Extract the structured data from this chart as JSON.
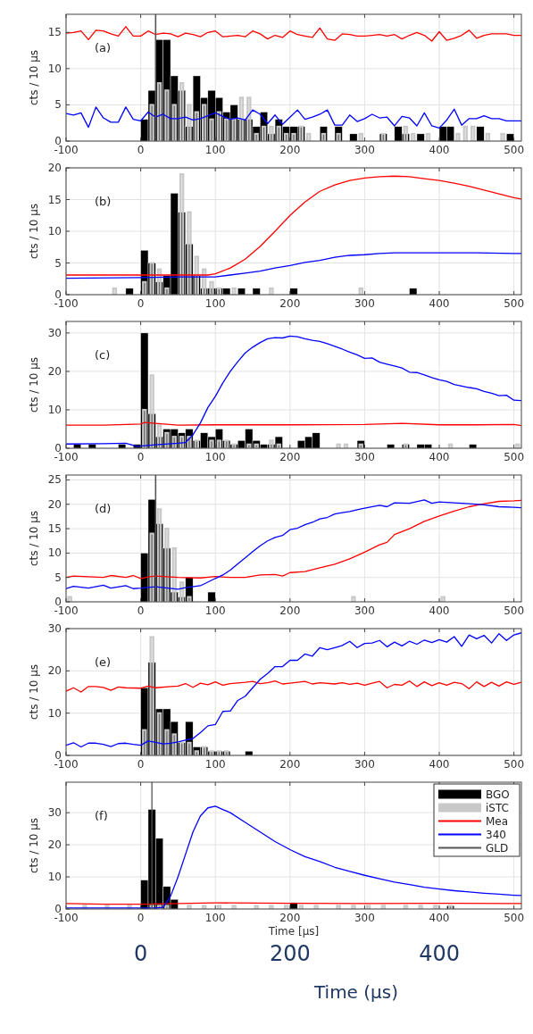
{
  "chart_data": [
    {
      "type": "bar",
      "annotations": [
        "(a)"
      ],
      "ylabel": "cts / 10 μs",
      "xlim": [
        -100,
        510
      ],
      "xticks": [
        -100,
        0,
        100,
        200,
        300,
        400,
        500
      ],
      "ylim": [
        0,
        17.5
      ],
      "yticks": [
        0,
        5,
        10,
        15
      ],
      "grid": true,
      "ref_lines": [
        {
          "axis": "x",
          "value": 20,
          "color": "#555555"
        }
      ],
      "series": [
        {
          "type": "bar",
          "color": "#000000",
          "x": [
            5,
            15,
            25,
            35,
            45,
            55,
            65,
            75,
            85,
            95,
            105,
            115,
            125,
            135,
            145,
            155,
            165,
            175,
            185,
            195,
            205,
            215,
            245,
            265,
            285,
            325,
            345,
            355,
            375,
            405,
            415,
            455,
            495
          ],
          "values": [
            3,
            7,
            14,
            14,
            9,
            7,
            2,
            9,
            6,
            7,
            6,
            4,
            5,
            3,
            3,
            2,
            4,
            1,
            3,
            2,
            2,
            2,
            2,
            2,
            1,
            1,
            2,
            1,
            1,
            2,
            2,
            2,
            1
          ]
        },
        {
          "type": "bar",
          "color": "#c8c8c8",
          "x": [
            15,
            25,
            35,
            45,
            55,
            65,
            75,
            85,
            95,
            105,
            115,
            125,
            135,
            145,
            155,
            165,
            175,
            185,
            195,
            205,
            215,
            225,
            245,
            265,
            295,
            325,
            355,
            365,
            385,
            425,
            435,
            445,
            465,
            485
          ],
          "values": [
            5,
            8,
            7,
            5,
            8,
            5,
            4,
            5,
            3,
            4,
            3,
            3,
            6,
            6,
            1,
            2,
            2,
            2,
            1,
            1,
            2,
            1,
            1,
            1,
            1,
            1,
            2,
            1,
            1,
            1,
            2,
            2,
            1,
            1
          ]
        },
        {
          "type": "line",
          "color": "#ff0000",
          "x": [
            -100,
            -90,
            -80,
            -70,
            -60,
            -50,
            -40,
            -30,
            -20,
            -10,
            0,
            10,
            20,
            30,
            40,
            50,
            60,
            70,
            80,
            90,
            100,
            110,
            120,
            130,
            140,
            150,
            160,
            170,
            180,
            190,
            200,
            210,
            220,
            230,
            240,
            250,
            260,
            270,
            280,
            290,
            300,
            310,
            320,
            330,
            340,
            350,
            360,
            370,
            380,
            390,
            400,
            410,
            420,
            430,
            440,
            450,
            460,
            470,
            480,
            490,
            500,
            510
          ],
          "values": [
            14.9,
            15,
            15.2,
            14,
            15.3,
            15.2,
            14.8,
            14.5,
            15.8,
            14.5,
            14.5,
            15.2,
            14.7,
            14.9,
            14.8,
            14.4,
            14.9,
            14.7,
            14.4,
            15,
            15.2,
            14.4,
            14.5,
            14.6,
            14.4,
            15.2,
            14.8,
            14.1,
            14.6,
            14.3,
            15.2,
            14.7,
            14.5,
            14.3,
            15.6,
            14.1,
            13.9,
            14.8,
            14.7,
            14.5,
            14.5,
            14.6,
            14.7,
            14.5,
            14.7,
            14.1,
            14.6,
            15,
            14.6,
            13.8,
            15.1,
            13.9,
            14.2,
            14.6,
            15.3,
            14.2,
            14.6,
            14.8,
            14.8,
            14.8,
            14.6,
            14.6
          ]
        },
        {
          "type": "line",
          "color": "#0000ff",
          "x": [
            -100,
            -90,
            -80,
            -70,
            -60,
            -50,
            -40,
            -30,
            -20,
            -10,
            0,
            10,
            20,
            30,
            40,
            50,
            60,
            70,
            80,
            90,
            100,
            110,
            120,
            130,
            140,
            150,
            160,
            170,
            180,
            190,
            200,
            210,
            220,
            230,
            240,
            250,
            260,
            270,
            280,
            290,
            300,
            310,
            320,
            330,
            340,
            350,
            360,
            370,
            380,
            390,
            400,
            410,
            420,
            430,
            440,
            450,
            460,
            470,
            480,
            490,
            500,
            510
          ],
          "values": [
            3.8,
            3.6,
            3.9,
            1.9,
            4.7,
            3.2,
            2.6,
            2.6,
            4.7,
            3,
            2.8,
            4,
            3.3,
            3.7,
            3.1,
            3.1,
            3.3,
            2.9,
            3.1,
            3.5,
            3.9,
            3.4,
            3,
            3.2,
            2.9,
            4.3,
            3.7,
            2.4,
            3.6,
            2.3,
            3.3,
            4.3,
            3,
            3.3,
            3.7,
            4.3,
            2.2,
            2.2,
            3.6,
            2.7,
            3.1,
            3.7,
            3.2,
            3.3,
            2.1,
            3.4,
            3.2,
            2.1,
            3.9,
            2.1,
            1.8,
            2.9,
            4.4,
            2.2,
            3.1,
            3.1,
            3.5,
            3.1,
            3.1,
            2.8,
            2.8,
            2.8
          ]
        }
      ]
    },
    {
      "type": "bar",
      "annotations": [
        "(b)"
      ],
      "ylabel": "cts / 10 μs",
      "xlim": [
        -100,
        510
      ],
      "xticks": [
        -100,
        0,
        100,
        200,
        300,
        400,
        500
      ],
      "ylim": [
        0,
        20
      ],
      "yticks": [
        0,
        5,
        10,
        15,
        20
      ],
      "grid": true,
      "series": [
        {
          "type": "bar",
          "color": "#000000",
          "x": [
            -15,
            5,
            15,
            25,
            35,
            45,
            55,
            65,
            75,
            85,
            95,
            105,
            115,
            135,
            155,
            205,
            365
          ],
          "values": [
            1,
            7,
            5,
            2,
            3,
            16,
            13,
            8,
            3,
            1,
            1,
            1,
            1,
            1,
            1,
            1,
            1
          ]
        },
        {
          "type": "bar",
          "color": "#c8c8c8",
          "x": [
            -35,
            5,
            15,
            25,
            35,
            55,
            65,
            75,
            85,
            95,
            105,
            125,
            175,
            295
          ],
          "values": [
            1,
            2,
            5,
            4,
            1,
            19,
            13,
            6,
            4,
            2,
            1,
            1,
            1,
            1
          ]
        },
        {
          "type": "line",
          "color": "#ff0000",
          "x": [
            -100,
            0,
            90,
            100,
            120,
            140,
            160,
            180,
            200,
            220,
            240,
            260,
            280,
            300,
            320,
            340,
            360,
            380,
            400,
            420,
            440,
            460,
            480,
            500,
            510
          ],
          "values": [
            3.1,
            3.1,
            3.1,
            3.3,
            4.2,
            5.6,
            7.6,
            10,
            12.5,
            14.6,
            16.3,
            17.3,
            18,
            18.4,
            18.6,
            18.7,
            18.6,
            18.3,
            18,
            17.6,
            17.1,
            16.5,
            15.9,
            15.3,
            15.1
          ]
        },
        {
          "type": "line",
          "color": "#0000ff",
          "x": [
            -100,
            0,
            50,
            100,
            120,
            140,
            160,
            180,
            200,
            220,
            240,
            260,
            280,
            300,
            320,
            340,
            360,
            400,
            450,
            500,
            510
          ],
          "values": [
            2.6,
            2.7,
            2.8,
            2.8,
            3.1,
            3.4,
            3.7,
            4.2,
            4.6,
            5.1,
            5.4,
            5.9,
            6.2,
            6.3,
            6.5,
            6.6,
            6.6,
            6.6,
            6.6,
            6.5,
            6.5
          ]
        }
      ]
    },
    {
      "type": "bar",
      "annotations": [
        "(c)"
      ],
      "ylabel": "cts / 10 μs",
      "xlim": [
        -100,
        510
      ],
      "xticks": [
        -100,
        0,
        100,
        200,
        300,
        400,
        500
      ],
      "ylim": [
        0,
        33
      ],
      "yticks": [
        0,
        10,
        20,
        30
      ],
      "grid": true,
      "series": [
        {
          "type": "bar",
          "color": "#000000",
          "x": [
            -85,
            -65,
            -25,
            -5,
            5,
            15,
            25,
            35,
            45,
            55,
            65,
            75,
            85,
            95,
            105,
            115,
            125,
            135,
            145,
            155,
            165,
            175,
            185,
            215,
            225,
            235,
            295,
            335,
            355,
            375,
            385,
            445
          ],
          "values": [
            1,
            1,
            1,
            1,
            30,
            9,
            3,
            5,
            5,
            4,
            5,
            2,
            4,
            3,
            5,
            2,
            1,
            2,
            5,
            2,
            1,
            1,
            3,
            2,
            3,
            4,
            2,
            1,
            1,
            1,
            1,
            1
          ]
        },
        {
          "type": "bar",
          "color": "#c8c8c8",
          "x": [
            5,
            15,
            25,
            35,
            45,
            55,
            65,
            75,
            95,
            105,
            115,
            125,
            145,
            155,
            175,
            185,
            265,
            275,
            295,
            355,
            415,
            505
          ],
          "values": [
            10,
            19,
            6,
            4,
            3,
            3,
            3,
            2,
            2,
            2,
            2,
            1,
            1,
            1,
            2,
            1,
            1,
            1,
            1,
            1,
            1,
            1
          ]
        },
        {
          "type": "line",
          "color": "#ff0000",
          "x": [
            -100,
            -50,
            0,
            5,
            50,
            100,
            200,
            300,
            350,
            400,
            450,
            500,
            510
          ],
          "values": [
            6,
            6,
            6.3,
            6.7,
            6,
            6.1,
            6.1,
            6.2,
            6.5,
            6.1,
            6.1,
            6.2,
            5.9
          ]
        },
        {
          "type": "line",
          "color": "#0000ff",
          "x": [
            -100,
            -50,
            -20,
            -5,
            20,
            50,
            60,
            70,
            80,
            90,
            100,
            110,
            120,
            130,
            140,
            150,
            160,
            170,
            180,
            190,
            200,
            210,
            220,
            230,
            240,
            250,
            260,
            270,
            280,
            290,
            300,
            310,
            320,
            330,
            340,
            350,
            360,
            370,
            380,
            390,
            400,
            410,
            420,
            430,
            440,
            450,
            460,
            470,
            480,
            490,
            500,
            510
          ],
          "values": [
            1.1,
            1.2,
            1.3,
            0.5,
            0.9,
            1.3,
            1.5,
            3.5,
            6.6,
            10.6,
            13.5,
            17,
            20,
            22.5,
            24.8,
            26.3,
            27.5,
            28.5,
            28.8,
            28.7,
            29.2,
            29,
            28.5,
            28.1,
            27.8,
            27.2,
            26.5,
            25.8,
            25,
            24.3,
            23.4,
            23.5,
            22.4,
            21.9,
            21.4,
            20.9,
            19.8,
            19.7,
            19.1,
            18.4,
            17.8,
            17.4,
            16.6,
            16.2,
            15.8,
            15.5,
            14.8,
            14.3,
            13.7,
            13.8,
            12.5,
            12.4
          ]
        }
      ]
    },
    {
      "type": "bar",
      "annotations": [
        "(d)"
      ],
      "ylabel": "cts / 10 μs",
      "xlim": [
        -100,
        510
      ],
      "xticks": [
        -100,
        0,
        100,
        200,
        300,
        400,
        500
      ],
      "ylim": [
        0,
        26
      ],
      "yticks": [
        0,
        5,
        10,
        15,
        20,
        25
      ],
      "grid": true,
      "ref_lines": [
        {
          "axis": "x",
          "value": 20,
          "color": "#555555"
        }
      ],
      "series": [
        {
          "type": "bar",
          "color": "#000000",
          "x": [
            5,
            15,
            25,
            35,
            45,
            55,
            65,
            95
          ],
          "values": [
            10,
            21,
            16,
            11,
            2,
            1,
            5,
            2
          ]
        },
        {
          "type": "bar",
          "color": "#c8c8c8",
          "x": [
            -95,
            15,
            25,
            35,
            45,
            55,
            65,
            285,
            405
          ],
          "values": [
            1,
            14,
            19,
            15,
            11,
            4,
            1,
            1,
            1
          ]
        },
        {
          "type": "line",
          "color": "#ff0000",
          "x": [
            -100,
            -90,
            -50,
            -40,
            -20,
            -10,
            0,
            10,
            20,
            50,
            80,
            100,
            120,
            140,
            160,
            180,
            190,
            200,
            220,
            240,
            260,
            280,
            300,
            320,
            330,
            340,
            360,
            380,
            400,
            420,
            440,
            460,
            480,
            500,
            510
          ],
          "values": [
            5,
            5.3,
            5,
            5.4,
            5,
            5.4,
            4.8,
            5.1,
            5.3,
            5,
            4.9,
            5.2,
            5,
            5,
            5.5,
            5.6,
            5.3,
            6,
            6.2,
            7,
            7.7,
            8.8,
            10.2,
            11.7,
            12.2,
            13.8,
            15,
            16.5,
            17.6,
            18.6,
            19.5,
            20.1,
            20.6,
            20.7,
            20.8
          ]
        },
        {
          "type": "line",
          "color": "#0000ff",
          "x": [
            -100,
            -90,
            -70,
            -50,
            -40,
            -20,
            -10,
            0,
            20,
            50,
            60,
            80,
            100,
            110,
            120,
            130,
            140,
            150,
            160,
            170,
            180,
            190,
            200,
            210,
            220,
            230,
            240,
            250,
            260,
            270,
            280,
            290,
            300,
            320,
            330,
            340,
            360,
            380,
            390,
            400,
            420,
            440,
            460,
            480,
            500,
            510
          ],
          "values": [
            2.7,
            3.2,
            2.8,
            3.4,
            2.8,
            3.3,
            2.7,
            2.8,
            3.1,
            2.6,
            2.9,
            3.3,
            4.8,
            5.5,
            6.5,
            7.8,
            9,
            10.3,
            11.5,
            12.5,
            13.2,
            13.6,
            14.8,
            15.1,
            15.8,
            16.3,
            17,
            17.3,
            18,
            18.3,
            18.5,
            18.9,
            19.2,
            19.8,
            19.5,
            20.3,
            20.2,
            20.9,
            20.2,
            20.5,
            20.3,
            20.1,
            19.9,
            19.5,
            19.4,
            19.3
          ]
        }
      ]
    },
    {
      "type": "bar",
      "annotations": [
        "(e)"
      ],
      "ylabel": "cts / 10 μs",
      "xlim": [
        -100,
        510
      ],
      "xticks": [
        -100,
        0,
        100,
        200,
        300,
        400,
        500
      ],
      "ylim": [
        0,
        30
      ],
      "yticks": [
        0,
        10,
        20,
        30
      ],
      "grid": true,
      "series": [
        {
          "type": "bar",
          "color": "#000000",
          "x": [
            5,
            15,
            25,
            35,
            45,
            55,
            65,
            75,
            85,
            95,
            105,
            115,
            145
          ],
          "values": [
            16,
            22,
            11,
            11,
            8,
            3,
            8,
            2,
            2,
            1,
            1,
            1,
            1
          ]
        },
        {
          "type": "bar",
          "color": "#c8c8c8",
          "x": [
            5,
            15,
            25,
            35,
            45,
            55,
            65,
            75,
            85,
            95,
            105,
            115
          ],
          "values": [
            6,
            28,
            10,
            6,
            5,
            3,
            3,
            1,
            2,
            1,
            1,
            1
          ]
        },
        {
          "type": "line",
          "color": "#ff0000",
          "x": [
            -100,
            -90,
            -80,
            -70,
            -60,
            -50,
            -40,
            -30,
            -20,
            0,
            10,
            20,
            40,
            50,
            60,
            70,
            80,
            90,
            100,
            110,
            120,
            140,
            150,
            160,
            170,
            180,
            190,
            200,
            220,
            230,
            240,
            260,
            270,
            280,
            290,
            300,
            310,
            320,
            330,
            340,
            350,
            360,
            370,
            380,
            390,
            400,
            410,
            420,
            430,
            440,
            450,
            460,
            470,
            480,
            490,
            500,
            510
          ],
          "values": [
            15.2,
            16,
            15,
            16.3,
            16.3,
            16.1,
            15.4,
            16.2,
            16,
            15.9,
            16.4,
            16,
            16.3,
            16.4,
            17,
            16.1,
            17.1,
            16.7,
            17.4,
            16.6,
            17,
            17.3,
            17.5,
            17,
            17.2,
            17.6,
            16.9,
            17.1,
            17.5,
            16.9,
            17.2,
            16.9,
            17.2,
            16.8,
            17.1,
            16.6,
            17.1,
            17.5,
            16,
            16.8,
            16.6,
            17.6,
            16.3,
            17.4,
            16.5,
            17.2,
            16.6,
            17.3,
            17,
            15.8,
            17.4,
            16.3,
            17.3,
            16.4,
            17.4,
            16.8,
            17.3
          ]
        },
        {
          "type": "line",
          "color": "#0000ff",
          "x": [
            -100,
            -90,
            -80,
            -70,
            -60,
            -50,
            -40,
            -30,
            -20,
            -10,
            0,
            10,
            20,
            30,
            40,
            50,
            60,
            70,
            80,
            90,
            100,
            110,
            120,
            130,
            140,
            150,
            160,
            170,
            180,
            190,
            200,
            210,
            220,
            230,
            240,
            250,
            260,
            270,
            280,
            290,
            300,
            310,
            320,
            330,
            340,
            350,
            360,
            370,
            380,
            390,
            400,
            410,
            420,
            430,
            440,
            450,
            460,
            470,
            480,
            490,
            500,
            510
          ],
          "values": [
            2.4,
            3,
            2,
            2.9,
            2.9,
            2.6,
            2.1,
            2.8,
            2.9,
            2.6,
            2.4,
            3.4,
            3.1,
            2.7,
            2.9,
            3.2,
            3.6,
            4,
            5.4,
            7,
            7.3,
            10.4,
            10.5,
            13,
            14,
            16,
            18,
            19.4,
            21,
            21,
            22.5,
            22.5,
            24,
            23.5,
            25.5,
            25,
            25.5,
            26,
            27,
            25.5,
            26.5,
            26.6,
            27.2,
            25.7,
            26.8,
            25.9,
            27,
            26.3,
            27.3,
            26.7,
            27.4,
            26.8,
            28.1,
            25.8,
            28.5,
            27.6,
            28.4,
            26.6,
            28.8,
            27.2,
            28.5,
            29
          ]
        }
      ]
    },
    {
      "type": "bar",
      "annotations": [
        "(f)"
      ],
      "xlabel": "Time [μs]",
      "ylabel": "cts / 10 μs",
      "xlim": [
        -100,
        510
      ],
      "xticks": [
        -100,
        0,
        100,
        200,
        300,
        400,
        500
      ],
      "ylim": [
        0,
        39.5
      ],
      "yticks": [
        0,
        10,
        20,
        30
      ],
      "x2lim": [
        -100,
        510
      ],
      "x2ticks": [
        0,
        200,
        400
      ],
      "x2label": "Time (µs)",
      "grid": true,
      "legend": "top right",
      "series": [
        {
          "name": "BGO",
          "type": "bar",
          "color": "#000000",
          "x": [
            5,
            15,
            25,
            35,
            45,
            205,
            415
          ],
          "values": [
            9,
            31,
            22,
            7,
            3,
            2,
            1
          ]
        },
        {
          "name": "iSTC",
          "type": "bar",
          "color": "#c8c8c8",
          "x": [
            -75,
            -45,
            -15,
            15,
            25,
            35,
            65,
            85,
            105,
            125,
            155,
            175,
            195,
            215,
            235,
            265,
            285,
            305,
            325,
            355,
            375,
            395,
            415
          ],
          "values": [
            1,
            1,
            1,
            1,
            1,
            1,
            1,
            1,
            1,
            1,
            1,
            1,
            1,
            1,
            1,
            1,
            1,
            1,
            1,
            1,
            1,
            1,
            1
          ]
        },
        {
          "name": "Mea",
          "type": "line",
          "color": "#ff0000",
          "x": [
            -100,
            -50,
            0,
            100,
            200,
            300,
            400,
            500,
            510
          ],
          "values": [
            1.7,
            1.5,
            1.5,
            1.9,
            1.8,
            1.7,
            1.8,
            1.7,
            1.7
          ]
        },
        {
          "name": "340",
          "type": "line",
          "color": "#0000ff",
          "x": [
            -100,
            -50,
            0,
            20,
            30,
            40,
            50,
            60,
            70,
            80,
            90,
            100,
            110,
            120,
            140,
            160,
            180,
            200,
            220,
            240,
            260,
            280,
            300,
            320,
            340,
            360,
            380,
            400,
            420,
            440,
            460,
            480,
            500,
            510
          ],
          "values": [
            0.3,
            0.3,
            0.3,
            0.3,
            0.5,
            4,
            10,
            17,
            24,
            29,
            31.5,
            32,
            31,
            30,
            27,
            24,
            21,
            18.5,
            16.3,
            14.8,
            13,
            11.7,
            10.5,
            9.4,
            8.4,
            7.6,
            6.8,
            6.2,
            5.7,
            5.3,
            4.9,
            4.6,
            4.3,
            4.2
          ]
        },
        {
          "name": "GLD",
          "type": "line",
          "color": "#555555",
          "x": [
            15,
            15
          ],
          "values": [
            0,
            39.5
          ]
        }
      ]
    }
  ]
}
